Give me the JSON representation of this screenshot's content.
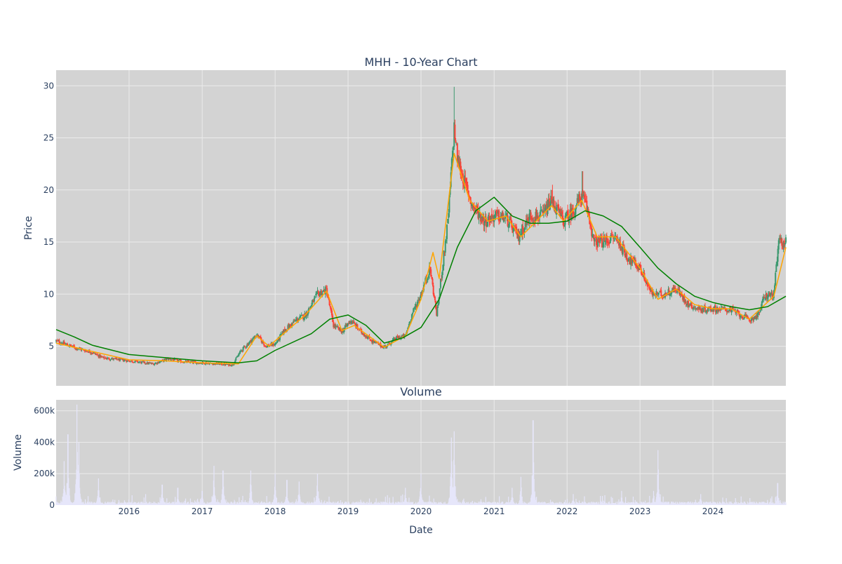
{
  "colors": {
    "page_bg": "#ffffff",
    "plot_bg": "#d3d3d3",
    "grid": "#ebebeb",
    "text": "#2a3f5f",
    "up_candle": "#3d9970",
    "down_candle": "#ff4136",
    "ma_short": "#ffa500",
    "ma_long": "#008000",
    "volume_bar": "#e6e6fa"
  },
  "chart_data": [
    {
      "type": "candlestick",
      "title": "MHH - 10-Year Chart",
      "xlabel": "",
      "ylabel": "Price",
      "xlim": [
        "2015-01-01",
        "2024-12-31"
      ],
      "ylim": [
        1.2,
        31.5
      ],
      "x_ticks": [
        "2016",
        "2017",
        "2018",
        "2019",
        "2020",
        "2021",
        "2022",
        "2023",
        "2024"
      ],
      "y_ticks": [
        5,
        10,
        15,
        20,
        25,
        30
      ],
      "grid": true,
      "close_anchors": [
        [
          "2015-01-01",
          5.5
        ],
        [
          "2015-04-01",
          4.9
        ],
        [
          "2015-07-01",
          4.4
        ],
        [
          "2015-08-20",
          3.9
        ],
        [
          "2015-10-01",
          3.8
        ],
        [
          "2016-01-01",
          3.6
        ],
        [
          "2016-05-01",
          3.3
        ],
        [
          "2016-07-15",
          3.8
        ],
        [
          "2016-10-01",
          3.5
        ],
        [
          "2017-01-01",
          3.4
        ],
        [
          "2017-04-01",
          3.3
        ],
        [
          "2017-06-01",
          3.2
        ],
        [
          "2017-07-15",
          4.6
        ],
        [
          "2017-09-01",
          5.5
        ],
        [
          "2017-10-01",
          6.1
        ],
        [
          "2017-11-15",
          5.0
        ],
        [
          "2018-01-01",
          5.2
        ],
        [
          "2018-02-15",
          6.5
        ],
        [
          "2018-04-15",
          7.5
        ],
        [
          "2018-06-01",
          8.0
        ],
        [
          "2018-08-01",
          10.0
        ],
        [
          "2018-09-15",
          10.4
        ],
        [
          "2018-10-20",
          7.0
        ],
        [
          "2018-12-01",
          6.4
        ],
        [
          "2019-01-15",
          7.5
        ],
        [
          "2019-03-01",
          6.5
        ],
        [
          "2019-05-01",
          5.5
        ],
        [
          "2019-07-01",
          4.9
        ],
        [
          "2019-09-01",
          5.8
        ],
        [
          "2019-10-15",
          6.0
        ],
        [
          "2019-11-15",
          8.0
        ],
        [
          "2020-01-01",
          10.0
        ],
        [
          "2020-02-15",
          12.5
        ],
        [
          "2020-03-20",
          8.0
        ],
        [
          "2020-04-10",
          11.5
        ],
        [
          "2020-05-15",
          17.0
        ],
        [
          "2020-06-15",
          26.0
        ],
        [
          "2020-07-01",
          23.0
        ],
        [
          "2020-08-01",
          21.0
        ],
        [
          "2020-09-15",
          18.5
        ],
        [
          "2020-11-15",
          17.0
        ],
        [
          "2021-01-01",
          17.5
        ],
        [
          "2021-03-01",
          17.3
        ],
        [
          "2021-05-01",
          15.5
        ],
        [
          "2021-07-01",
          17.5
        ],
        [
          "2021-09-01",
          17.5
        ],
        [
          "2021-10-15",
          19.0
        ],
        [
          "2021-12-15",
          17.0
        ],
        [
          "2022-02-01",
          18.0
        ],
        [
          "2022-03-15",
          19.5
        ],
        [
          "2022-04-15",
          18.0
        ],
        [
          "2022-05-15",
          15.0
        ],
        [
          "2022-07-01",
          15.0
        ],
        [
          "2022-09-01",
          15.5
        ],
        [
          "2022-11-01",
          13.5
        ],
        [
          "2023-01-01",
          12.5
        ],
        [
          "2023-03-01",
          10.0
        ],
        [
          "2023-05-01",
          10.0
        ],
        [
          "2023-07-01",
          10.5
        ],
        [
          "2023-09-01",
          9.0
        ],
        [
          "2023-11-01",
          8.5
        ],
        [
          "2024-01-01",
          8.6
        ],
        [
          "2024-04-01",
          8.5
        ],
        [
          "2024-07-01",
          7.5
        ],
        [
          "2024-08-15",
          8.0
        ],
        [
          "2024-09-15",
          9.8
        ],
        [
          "2024-11-01",
          10.0
        ],
        [
          "2024-11-25",
          15.0
        ],
        [
          "2024-12-31",
          15.0
        ]
      ],
      "peaks": [
        [
          "2020-06-15",
          29.9
        ],
        [
          "2022-03-20",
          21.8
        ],
        [
          "2021-10-20",
          20.5
        ]
      ],
      "series": [
        {
          "style": "short moving average",
          "color": "#ffa500",
          "values": [
            [
              "2015-01-01",
              5.3
            ],
            [
              "2015-07-01",
              4.5
            ],
            [
              "2016-01-01",
              3.7
            ],
            [
              "2016-07-01",
              3.6
            ],
            [
              "2017-01-01",
              3.4
            ],
            [
              "2017-07-01",
              3.3
            ],
            [
              "2017-10-01",
              6.0
            ],
            [
              "2017-12-01",
              5.0
            ],
            [
              "2018-06-01",
              8.0
            ],
            [
              "2018-09-15",
              10.3
            ],
            [
              "2018-12-01",
              6.5
            ],
            [
              "2019-02-01",
              7.0
            ],
            [
              "2019-07-01",
              4.9
            ],
            [
              "2019-10-15",
              6.0
            ],
            [
              "2020-01-01",
              9.5
            ],
            [
              "2020-03-01",
              14.0
            ],
            [
              "2020-04-01",
              11.5
            ],
            [
              "2020-06-15",
              23.5
            ],
            [
              "2020-09-01",
              19.0
            ],
            [
              "2020-12-01",
              17.0
            ],
            [
              "2021-03-01",
              17.5
            ],
            [
              "2021-05-15",
              15.5
            ],
            [
              "2021-10-15",
              18.5
            ],
            [
              "2021-12-15",
              17.0
            ],
            [
              "2022-03-15",
              19.0
            ],
            [
              "2022-06-01",
              15.5
            ],
            [
              "2022-09-01",
              15.5
            ],
            [
              "2023-01-01",
              12.5
            ],
            [
              "2023-04-01",
              9.5
            ],
            [
              "2023-07-01",
              10.5
            ],
            [
              "2023-10-01",
              9.0
            ],
            [
              "2024-01-01",
              8.6
            ],
            [
              "2024-04-01",
              8.6
            ],
            [
              "2024-07-01",
              7.6
            ],
            [
              "2024-11-01",
              9.8
            ],
            [
              "2024-12-31",
              14.5
            ]
          ]
        },
        {
          "style": "long moving average",
          "color": "#008000",
          "values": [
            [
              "2015-01-01",
              6.6
            ],
            [
              "2015-04-01",
              5.9
            ],
            [
              "2015-07-01",
              5.1
            ],
            [
              "2016-01-01",
              4.2
            ],
            [
              "2016-07-01",
              3.9
            ],
            [
              "2017-01-01",
              3.6
            ],
            [
              "2017-07-01",
              3.4
            ],
            [
              "2017-10-01",
              3.6
            ],
            [
              "2018-01-01",
              4.6
            ],
            [
              "2018-07-01",
              6.2
            ],
            [
              "2018-10-01",
              7.6
            ],
            [
              "2019-01-01",
              8.0
            ],
            [
              "2019-04-01",
              7.0
            ],
            [
              "2019-07-01",
              5.3
            ],
            [
              "2019-10-01",
              5.8
            ],
            [
              "2020-01-01",
              6.8
            ],
            [
              "2020-04-01",
              9.5
            ],
            [
              "2020-07-01",
              14.5
            ],
            [
              "2020-10-01",
              18.0
            ],
            [
              "2021-01-01",
              19.3
            ],
            [
              "2021-04-01",
              17.5
            ],
            [
              "2021-07-01",
              16.8
            ],
            [
              "2021-10-01",
              16.8
            ],
            [
              "2022-01-01",
              17.0
            ],
            [
              "2022-04-01",
              18.0
            ],
            [
              "2022-07-01",
              17.5
            ],
            [
              "2022-10-01",
              16.5
            ],
            [
              "2023-01-01",
              14.5
            ],
            [
              "2023-04-01",
              12.5
            ],
            [
              "2023-07-01",
              11.0
            ],
            [
              "2023-10-01",
              9.8
            ],
            [
              "2024-01-01",
              9.2
            ],
            [
              "2024-04-01",
              8.8
            ],
            [
              "2024-07-01",
              8.5
            ],
            [
              "2024-10-01",
              8.8
            ],
            [
              "2024-12-31",
              9.8
            ]
          ]
        }
      ]
    },
    {
      "type": "bar",
      "title": "Volume",
      "xlabel": "Date",
      "ylabel": "Volume",
      "ylim": [
        0,
        670000
      ],
      "y_ticks": [
        0,
        200000,
        400000,
        600000
      ],
      "y_tick_labels": [
        "0",
        "200k",
        "400k",
        "600k"
      ],
      "x_ticks": [
        "2016",
        "2017",
        "2018",
        "2019",
        "2020",
        "2021",
        "2022",
        "2023",
        "2024"
      ],
      "spikes": [
        [
          "2015-03-01",
          450000
        ],
        [
          "2015-04-15",
          640000
        ],
        [
          "2015-04-25",
          400000
        ],
        [
          "2015-02-10",
          280000
        ],
        [
          "2015-08-01",
          170000
        ],
        [
          "2016-06-15",
          130000
        ],
        [
          "2016-09-01",
          110000
        ],
        [
          "2017-01-01",
          90000
        ],
        [
          "2017-03-01",
          250000
        ],
        [
          "2017-04-15",
          220000
        ],
        [
          "2017-09-01",
          220000
        ],
        [
          "2018-01-01",
          200000
        ],
        [
          "2018-03-01",
          160000
        ],
        [
          "2018-05-01",
          150000
        ],
        [
          "2018-08-01",
          200000
        ],
        [
          "2019-10-15",
          110000
        ],
        [
          "2020-01-01",
          200000
        ],
        [
          "2020-06-15",
          470000
        ],
        [
          "2020-06-01",
          430000
        ],
        [
          "2021-04-01",
          110000
        ],
        [
          "2021-05-15",
          180000
        ],
        [
          "2021-07-15",
          540000
        ],
        [
          "2022-02-01",
          70000
        ],
        [
          "2022-10-01",
          90000
        ],
        [
          "2023-04-01",
          350000
        ],
        [
          "2023-03-10",
          90000
        ],
        [
          "2023-11-01",
          70000
        ],
        [
          "2024-11-20",
          140000
        ]
      ]
    }
  ]
}
